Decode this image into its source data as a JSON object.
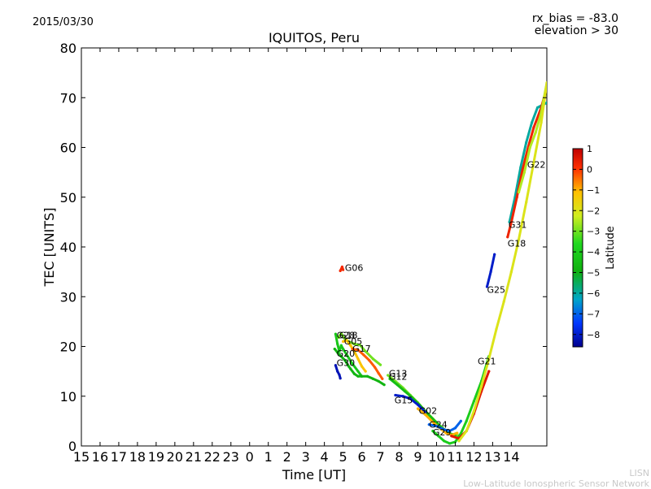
{
  "chart_data": {
    "type": "scatter",
    "title": "IQUITOS, Peru",
    "date": "2015/03/30",
    "rx_bias": "rx_bias = -83.0",
    "elevation": "elevation > 30",
    "xlabel": "Time [UT]",
    "ylabel": "TEC [UNITS]",
    "x_ticks": [
      "15",
      "16",
      "17",
      "18",
      "19",
      "20",
      "21",
      "22",
      "23",
      "0",
      "1",
      "2",
      "3",
      "4",
      "5",
      "6",
      "7",
      "8",
      "9",
      "10",
      "11",
      "12",
      "13",
      "14"
    ],
    "xlim": [
      0,
      24.9
    ],
    "ylim": [
      0,
      80
    ],
    "y_ticks": [
      0,
      10,
      20,
      30,
      40,
      50,
      60,
      70,
      80
    ],
    "grid": false,
    "colorbar": {
      "label": "Latitude",
      "range": [
        -8.6,
        1
      ],
      "ticks": [
        1,
        0,
        -1,
        -2,
        -3,
        -4,
        -5,
        -6,
        -7,
        -8
      ],
      "tick_labels": [
        "1",
        "0",
        "−1",
        "−2",
        "−3",
        "−4",
        "−5",
        "−6",
        "−7",
        "−8"
      ]
    },
    "satellites": [
      {
        "name": "G06",
        "label_at": [
          14.1,
          35.8
        ],
        "points": [
          [
            13.85,
            35.2
          ],
          [
            13.95,
            36.0
          ],
          [
            14.0,
            35.4
          ]
        ],
        "latitude": 0.2
      },
      {
        "name": "G28",
        "label_at": [
          13.65,
          22.3
        ],
        "points": [
          [
            13.6,
            22.5
          ],
          [
            13.7,
            20.5
          ],
          [
            13.8,
            19.0
          ],
          [
            13.9,
            20.2
          ],
          [
            14.0,
            19.5
          ],
          [
            14.2,
            18.3
          ],
          [
            14.5,
            16.5
          ],
          [
            14.8,
            15.0
          ],
          [
            15.0,
            14.0
          ]
        ],
        "latitude": -4.2
      },
      {
        "name": "G18",
        "label_at": [
          13.8,
          22.3
        ],
        "points": [
          [
            13.75,
            21.8
          ],
          [
            13.9,
            22.6
          ],
          [
            14.1,
            21.5
          ],
          [
            14.3,
            21.0
          ],
          [
            14.6,
            20.5
          ],
          [
            14.9,
            20.3
          ],
          [
            15.2,
            19.0
          ],
          [
            15.6,
            17.5
          ],
          [
            16.0,
            16.3
          ]
        ],
        "latitude": -3.0
      },
      {
        "name": "G05",
        "label_at": [
          14.05,
          21.1
        ],
        "points": [
          [
            14.0,
            21.0
          ],
          [
            14.2,
            21.2
          ],
          [
            14.4,
            20.2
          ],
          [
            14.6,
            19.0
          ],
          [
            14.8,
            17.5
          ],
          [
            15.0,
            16.0
          ],
          [
            15.2,
            15.0
          ]
        ],
        "latitude": -1.2
      },
      {
        "name": "G17",
        "label_at": [
          14.5,
          19.6
        ],
        "points": [
          [
            14.5,
            19.5
          ],
          [
            14.8,
            19.3
          ],
          [
            15.1,
            18.3
          ],
          [
            15.4,
            17.2
          ],
          [
            15.7,
            15.8
          ],
          [
            15.9,
            14.6
          ],
          [
            16.1,
            13.5
          ]
        ],
        "latitude": -0.3
      },
      {
        "name": "G20",
        "label_at": [
          13.65,
          18.6
        ],
        "points": [
          [
            13.55,
            19.5
          ],
          [
            13.7,
            18.8
          ],
          [
            13.9,
            18.0
          ],
          [
            14.1,
            17.2
          ],
          [
            14.3,
            16.0
          ],
          [
            14.4,
            15.5
          ],
          [
            14.6,
            14.5
          ],
          [
            14.8,
            14.0
          ],
          [
            15.0,
            14.0
          ],
          [
            15.3,
            14.0
          ],
          [
            15.6,
            13.5
          ],
          [
            15.9,
            13.0
          ],
          [
            16.2,
            12.3
          ]
        ],
        "latitude": -4.8
      },
      {
        "name": "G30",
        "label_at": [
          13.65,
          16.7
        ],
        "points": [
          [
            13.6,
            16.2
          ],
          [
            13.7,
            15.0
          ],
          [
            13.8,
            14.3
          ],
          [
            13.85,
            13.6
          ]
        ],
        "latitude": -8.2
      },
      {
        "name": "G13",
        "label_at": [
          16.45,
          14.6
        ],
        "points": [
          [
            16.4,
            14.2
          ],
          [
            16.8,
            13.0
          ],
          [
            17.2,
            11.7
          ],
          [
            17.6,
            10.2
          ],
          [
            18.0,
            8.7
          ],
          [
            18.4,
            7.0
          ],
          [
            18.8,
            5.5
          ],
          [
            19.2,
            4.0
          ],
          [
            19.6,
            2.8
          ],
          [
            20.0,
            2.0
          ],
          [
            20.3,
            2.2
          ]
        ],
        "latitude": -3.0
      },
      {
        "name": "G12",
        "label_at": [
          16.45,
          14.0
        ],
        "points": [
          [
            16.5,
            13.5
          ],
          [
            16.9,
            12.3
          ],
          [
            17.3,
            11.0
          ],
          [
            17.7,
            9.7
          ],
          [
            18.1,
            8.2
          ],
          [
            18.5,
            6.6
          ],
          [
            18.9,
            5.0
          ],
          [
            19.3,
            3.6
          ],
          [
            19.7,
            2.5
          ],
          [
            20.0,
            2.2
          ]
        ],
        "latitude": -4.5
      },
      {
        "name": "G15",
        "label_at": [
          16.75,
          9.2
        ],
        "points": [
          [
            16.8,
            10.2
          ],
          [
            17.2,
            10.0
          ],
          [
            17.6,
            9.5
          ],
          [
            18.0,
            8.3
          ],
          [
            18.4,
            6.8
          ]
        ],
        "latitude": -8.0
      },
      {
        "name": "G02",
        "label_at": [
          18.05,
          7.1
        ],
        "points": [
          [
            18.0,
            7.5
          ],
          [
            18.4,
            6.3
          ],
          [
            18.8,
            4.8
          ],
          [
            19.2,
            3.5
          ],
          [
            19.5,
            2.6
          ],
          [
            19.8,
            2.2
          ],
          [
            20.1,
            2.6
          ]
        ],
        "latitude": -1.0
      },
      {
        "name": "G24",
        "label_at": [
          18.6,
          4.3
        ],
        "points": [
          [
            18.6,
            4.3
          ],
          [
            19.0,
            4.0
          ],
          [
            19.4,
            3.3
          ],
          [
            19.7,
            3.0
          ],
          [
            20.0,
            3.6
          ],
          [
            20.3,
            5.0
          ]
        ],
        "latitude": -7.0
      },
      {
        "name": "G29",
        "label_at": [
          18.8,
          2.8
        ],
        "points": [
          [
            18.8,
            3.0
          ],
          [
            19.1,
            2.0
          ],
          [
            19.4,
            1.0
          ],
          [
            19.7,
            0.5
          ],
          [
            20.0,
            0.8
          ],
          [
            20.3,
            2.5
          ],
          [
            20.6,
            5.0
          ],
          [
            21.0,
            9.0
          ],
          [
            21.4,
            13.0
          ],
          [
            21.8,
            18.0
          ]
        ],
        "latitude": -4.0
      },
      {
        "name": "G21",
        "label_at": [
          21.2,
          17.1
        ],
        "points": [
          [
            19.8,
            2.0
          ],
          [
            20.2,
            1.5
          ],
          [
            20.6,
            3.0
          ],
          [
            21.0,
            6.5
          ],
          [
            21.4,
            11.0
          ],
          [
            21.8,
            15.0
          ]
        ],
        "latitude": 0.5
      },
      {
        "name": "G25",
        "label_at": [
          21.7,
          31.4
        ],
        "points": [
          [
            21.7,
            32.0
          ],
          [
            21.9,
            35.0
          ],
          [
            22.1,
            38.5
          ]
        ],
        "latitude": -8.0
      },
      {
        "name": "G31",
        "label_at": [
          22.85,
          44.5
        ],
        "points": [
          [
            22.9,
            45.0
          ],
          [
            23.2,
            50.0
          ],
          [
            23.5,
            56.0
          ],
          [
            23.8,
            61.0
          ],
          [
            24.1,
            65.0
          ],
          [
            24.4,
            68.0
          ],
          [
            24.9,
            69.0
          ]
        ],
        "latitude": -6.0
      },
      {
        "name": "G18",
        "label_at": [
          22.8,
          40.7
        ],
        "points": [
          [
            22.8,
            42.0
          ],
          [
            23.0,
            45.0
          ],
          [
            23.3,
            50.0
          ],
          [
            23.6,
            55.5
          ],
          [
            23.9,
            60.0
          ],
          [
            24.2,
            64.0
          ],
          [
            24.6,
            68.0
          ],
          [
            24.9,
            72.0
          ]
        ],
        "latitude": 0.3
      },
      {
        "name": "G22",
        "label_at": [
          23.85,
          56.6
        ],
        "points": [
          [
            23.4,
            51.0
          ],
          [
            23.7,
            55.0
          ],
          [
            24.0,
            60.0
          ],
          [
            24.3,
            63.0
          ],
          [
            24.6,
            67.0
          ],
          [
            24.9,
            73.0
          ]
        ],
        "latitude": -2.5
      },
      {
        "name": "main",
        "label_at": null,
        "points": [
          [
            20.2,
            1.0
          ],
          [
            20.6,
            3.0
          ],
          [
            21.0,
            7.0
          ],
          [
            21.4,
            12.0
          ],
          [
            21.8,
            17.5
          ],
          [
            22.2,
            23.5
          ],
          [
            22.6,
            29.0
          ],
          [
            23.0,
            35.0
          ],
          [
            23.4,
            41.5
          ],
          [
            23.8,
            49.0
          ],
          [
            24.2,
            57.0
          ],
          [
            24.6,
            65.0
          ],
          [
            24.9,
            73.0
          ]
        ],
        "latitude": -2.0
      }
    ]
  },
  "footer": {
    "org": "LISN",
    "org_full": "Low-Latitude Ionospheric Sensor Network"
  }
}
